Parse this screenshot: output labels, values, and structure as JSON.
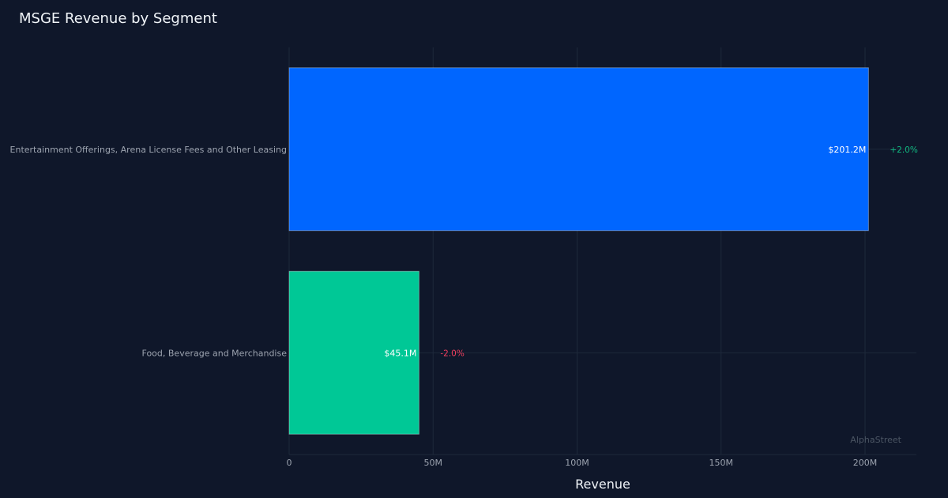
{
  "chart_data": {
    "type": "bar",
    "orientation": "horizontal",
    "title": "MSGE Revenue by Segment",
    "xlabel": "Revenue",
    "ylabel": "",
    "categories": [
      "Entertainment Offerings, Arena License Fees and Other Leasing",
      "Food, Beverage and Merchandise"
    ],
    "values": [
      201.2,
      45.1
    ],
    "value_labels": [
      "$201.2M",
      "$45.1M"
    ],
    "change_labels": [
      "+2.0%",
      "-2.0%"
    ],
    "xlim": [
      0,
      218
    ],
    "x_ticks": [
      0,
      50,
      100,
      150,
      200
    ],
    "x_tick_labels": [
      "0",
      "50M",
      "100M",
      "150M",
      "200M"
    ],
    "grid": true,
    "colors": {
      "bars": [
        "#0066ff",
        "#00c896"
      ],
      "positive_change": "#10b981",
      "negative_change": "#f43f5e",
      "background": "#0f172a",
      "grid": "#1e293b"
    }
  },
  "watermark": "AlphaStreet"
}
